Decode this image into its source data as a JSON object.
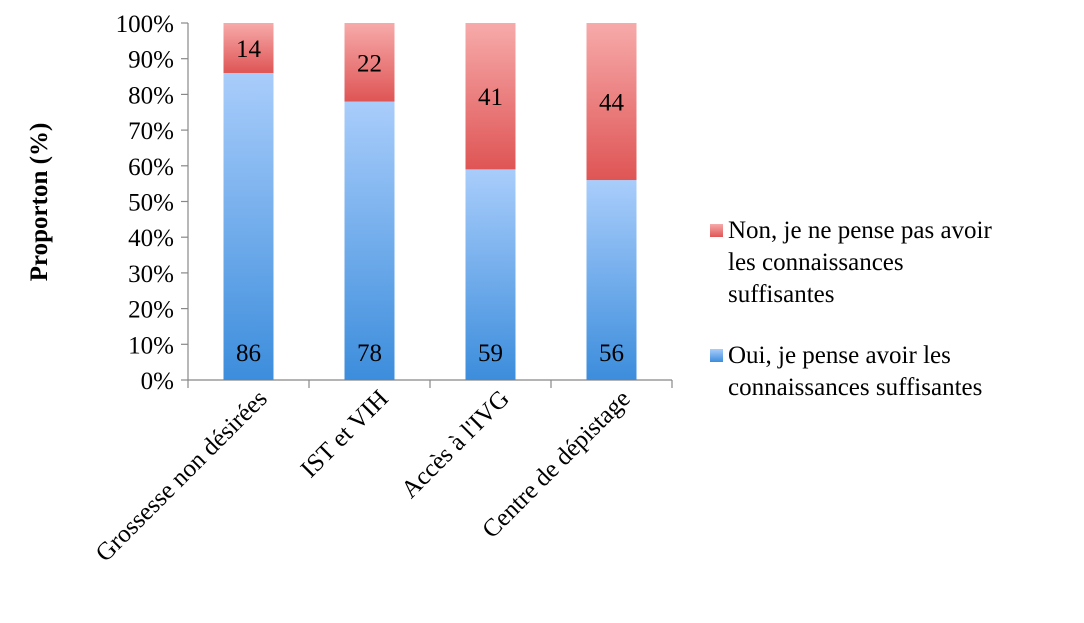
{
  "chart_data": {
    "type": "bar",
    "stacked": true,
    "percent_stacked": true,
    "categories": [
      "Grossesse non désirées",
      "IST et VIH",
      "Accès à l'IVG",
      "Centre de dépistage"
    ],
    "series": [
      {
        "name": "Oui, je pense avoir les connaissances suffisantes",
        "legend_lines": [
          "Oui, je pense avoir les",
          "connaissances suffisantes"
        ],
        "values": [
          86,
          78,
          59,
          56
        ],
        "color_top": "#a9cdfb",
        "color_bottom": "#3c8ddc"
      },
      {
        "name": "Non, je ne pense pas avoir les connaissances suffisantes",
        "legend_lines": [
          "Non, je ne pense pas avoir",
          "les connaissances",
          "suffisantes"
        ],
        "values": [
          14,
          22,
          41,
          44
        ],
        "color_top": "#f7aaaa",
        "color_bottom": "#df5555"
      }
    ],
    "ylabel": "Proporton (%)",
    "ylim": [
      0,
      100
    ],
    "yticks": [
      "0%",
      "10%",
      "20%",
      "30%",
      "40%",
      "50%",
      "60%",
      "70%",
      "80%",
      "90%",
      "100%"
    ],
    "grid": false,
    "legend_position": "right"
  }
}
